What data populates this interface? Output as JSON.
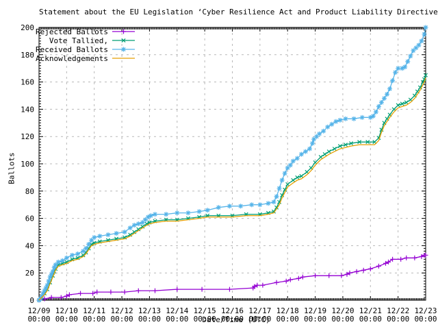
{
  "title": "Statement about the EU Legislation ‘Cyber Resilience Act and Product Liability Directive’",
  "colors": {
    "rejected": "#9400d3",
    "tallied": "#009e73",
    "received": "#56b4e9",
    "acknowledgements": "#e69f00",
    "grid": "#b8b8b8",
    "border": "#000000",
    "background": "#ffffff"
  },
  "chart_data": {
    "type": "line",
    "title": "Statement about the EU Legislation ‘Cyber Resilience Act and Product Liability Directive’",
    "xlabel": "Date/Time (UTC)",
    "ylabel": "Ballots",
    "ylim": [
      0,
      200
    ],
    "xlim_days": [
      0,
      14
    ],
    "grid": true,
    "legend_position": "top-left",
    "y_ticks": [
      0,
      20,
      40,
      60,
      80,
      100,
      120,
      140,
      160,
      180,
      200
    ],
    "x_ticks": [
      {
        "label": "12/09",
        "sub": "00:00"
      },
      {
        "label": "12/10",
        "sub": "00:00"
      },
      {
        "label": "12/11",
        "sub": "00:00"
      },
      {
        "label": "12/12",
        "sub": "00:00"
      },
      {
        "label": "12/13",
        "sub": "00:00"
      },
      {
        "label": "12/14",
        "sub": "00:00"
      },
      {
        "label": "12/15",
        "sub": "00:00"
      },
      {
        "label": "12/16",
        "sub": "00:00"
      },
      {
        "label": "12/17",
        "sub": "00:00"
      },
      {
        "label": "12/18",
        "sub": "00:00"
      },
      {
        "label": "12/19",
        "sub": "00:00"
      },
      {
        "label": "12/20",
        "sub": "00:00"
      },
      {
        "label": "12/21",
        "sub": "00:00"
      },
      {
        "label": "12/22",
        "sub": "00:00"
      },
      {
        "label": "12/23",
        "sub": "00:00"
      }
    ],
    "series": [
      {
        "name": "Rejected Ballots",
        "color": "#9400d3",
        "marker": "plus",
        "points": [
          [
            0,
            0
          ],
          [
            0.2,
            1
          ],
          [
            0.45,
            2
          ],
          [
            0.8,
            2
          ],
          [
            1.0,
            3
          ],
          [
            1.1,
            4
          ],
          [
            1.5,
            5
          ],
          [
            1.95,
            5
          ],
          [
            2.1,
            6
          ],
          [
            2.6,
            6
          ],
          [
            3.1,
            6
          ],
          [
            3.6,
            7
          ],
          [
            4.2,
            7
          ],
          [
            5.0,
            8
          ],
          [
            5.9,
            8
          ],
          [
            6.9,
            8
          ],
          [
            7.75,
            9
          ],
          [
            7.8,
            10
          ],
          [
            7.9,
            11
          ],
          [
            8.1,
            11
          ],
          [
            8.6,
            13
          ],
          [
            8.95,
            14
          ],
          [
            9.1,
            15
          ],
          [
            9.4,
            16
          ],
          [
            9.55,
            17
          ],
          [
            10.0,
            18
          ],
          [
            10.5,
            18
          ],
          [
            10.95,
            18
          ],
          [
            11.15,
            19
          ],
          [
            11.25,
            20
          ],
          [
            11.5,
            21
          ],
          [
            11.75,
            22
          ],
          [
            12.0,
            23
          ],
          [
            12.3,
            25
          ],
          [
            12.55,
            27
          ],
          [
            12.65,
            28
          ],
          [
            12.8,
            30
          ],
          [
            13.1,
            30
          ],
          [
            13.3,
            31
          ],
          [
            13.6,
            31
          ],
          [
            13.85,
            32
          ],
          [
            13.95,
            33
          ],
          [
            14.0,
            33
          ]
        ]
      },
      {
        "name": "Vote Tallied,",
        "color": "#009e73",
        "marker": "cross",
        "points": [
          [
            0,
            0
          ],
          [
            0.1,
            2
          ],
          [
            0.2,
            5
          ],
          [
            0.3,
            8
          ],
          [
            0.4,
            13
          ],
          [
            0.5,
            18
          ],
          [
            0.55,
            21
          ],
          [
            0.6,
            23
          ],
          [
            0.7,
            26
          ],
          [
            0.85,
            27
          ],
          [
            1.0,
            28
          ],
          [
            1.2,
            30
          ],
          [
            1.4,
            31
          ],
          [
            1.6,
            33
          ],
          [
            1.7,
            35
          ],
          [
            1.8,
            38
          ],
          [
            1.9,
            41
          ],
          [
            2.0,
            42
          ],
          [
            2.2,
            43
          ],
          [
            2.5,
            44
          ],
          [
            2.8,
            45
          ],
          [
            3.1,
            46
          ],
          [
            3.3,
            48
          ],
          [
            3.45,
            50
          ],
          [
            3.6,
            52
          ],
          [
            3.75,
            54
          ],
          [
            3.9,
            56
          ],
          [
            4.0,
            57
          ],
          [
            4.2,
            58
          ],
          [
            4.6,
            59
          ],
          [
            5.0,
            59
          ],
          [
            5.4,
            60
          ],
          [
            5.8,
            61
          ],
          [
            6.1,
            62
          ],
          [
            6.5,
            62
          ],
          [
            7.0,
            62
          ],
          [
            7.5,
            63
          ],
          [
            8.0,
            63
          ],
          [
            8.3,
            64
          ],
          [
            8.5,
            65
          ],
          [
            8.6,
            68
          ],
          [
            8.7,
            72
          ],
          [
            8.8,
            77
          ],
          [
            8.9,
            81
          ],
          [
            9.0,
            85
          ],
          [
            9.2,
            88
          ],
          [
            9.35,
            90
          ],
          [
            9.5,
            91
          ],
          [
            9.7,
            94
          ],
          [
            9.85,
            97
          ],
          [
            10.0,
            101
          ],
          [
            10.2,
            105
          ],
          [
            10.35,
            107
          ],
          [
            10.5,
            109
          ],
          [
            10.7,
            111
          ],
          [
            10.9,
            113
          ],
          [
            11.1,
            114
          ],
          [
            11.3,
            115
          ],
          [
            11.6,
            116
          ],
          [
            11.9,
            116
          ],
          [
            12.15,
            116
          ],
          [
            12.3,
            119
          ],
          [
            12.4,
            125
          ],
          [
            12.5,
            130
          ],
          [
            12.6,
            133
          ],
          [
            12.7,
            136
          ],
          [
            12.85,
            140
          ],
          [
            13.0,
            143
          ],
          [
            13.15,
            144
          ],
          [
            13.3,
            145
          ],
          [
            13.45,
            147
          ],
          [
            13.6,
            150
          ],
          [
            13.7,
            153
          ],
          [
            13.8,
            156
          ],
          [
            13.9,
            160
          ],
          [
            13.95,
            162
          ],
          [
            14.0,
            165
          ]
        ]
      },
      {
        "name": "Received Ballots",
        "color": "#56b4e9",
        "marker": "star",
        "points": [
          [
            0,
            0
          ],
          [
            0.05,
            1
          ],
          [
            0.1,
            3
          ],
          [
            0.15,
            5
          ],
          [
            0.2,
            7
          ],
          [
            0.25,
            9
          ],
          [
            0.3,
            11
          ],
          [
            0.35,
            14
          ],
          [
            0.4,
            17
          ],
          [
            0.45,
            19
          ],
          [
            0.5,
            21
          ],
          [
            0.55,
            24
          ],
          [
            0.6,
            26
          ],
          [
            0.7,
            28
          ],
          [
            0.85,
            29
          ],
          [
            1.0,
            31
          ],
          [
            1.2,
            33
          ],
          [
            1.4,
            34
          ],
          [
            1.6,
            36
          ],
          [
            1.7,
            38
          ],
          [
            1.8,
            41
          ],
          [
            1.9,
            44
          ],
          [
            2.0,
            46
          ],
          [
            2.2,
            47
          ],
          [
            2.5,
            48
          ],
          [
            2.8,
            49
          ],
          [
            3.1,
            50
          ],
          [
            3.3,
            53
          ],
          [
            3.45,
            55
          ],
          [
            3.6,
            56
          ],
          [
            3.75,
            57
          ],
          [
            3.85,
            59
          ],
          [
            3.95,
            61
          ],
          [
            4.05,
            62
          ],
          [
            4.2,
            63
          ],
          [
            4.6,
            63
          ],
          [
            5.0,
            64
          ],
          [
            5.4,
            64
          ],
          [
            5.8,
            65
          ],
          [
            6.1,
            66
          ],
          [
            6.5,
            68
          ],
          [
            6.9,
            69
          ],
          [
            7.3,
            69
          ],
          [
            7.7,
            70
          ],
          [
            8.0,
            70
          ],
          [
            8.3,
            71
          ],
          [
            8.5,
            72
          ],
          [
            8.6,
            76
          ],
          [
            8.7,
            82
          ],
          [
            8.8,
            88
          ],
          [
            8.9,
            93
          ],
          [
            9.0,
            97
          ],
          [
            9.1,
            99
          ],
          [
            9.2,
            102
          ],
          [
            9.35,
            104
          ],
          [
            9.5,
            107
          ],
          [
            9.65,
            109
          ],
          [
            9.8,
            111
          ],
          [
            9.9,
            115
          ],
          [
            9.95,
            118
          ],
          [
            10.05,
            120
          ],
          [
            10.15,
            122
          ],
          [
            10.3,
            124
          ],
          [
            10.45,
            127
          ],
          [
            10.6,
            129
          ],
          [
            10.75,
            131
          ],
          [
            10.9,
            132
          ],
          [
            11.1,
            133
          ],
          [
            11.4,
            133
          ],
          [
            11.7,
            134
          ],
          [
            12.0,
            134
          ],
          [
            12.1,
            135
          ],
          [
            12.2,
            138
          ],
          [
            12.3,
            142
          ],
          [
            12.4,
            145
          ],
          [
            12.5,
            148
          ],
          [
            12.6,
            151
          ],
          [
            12.7,
            155
          ],
          [
            12.8,
            161
          ],
          [
            12.9,
            167
          ],
          [
            13.0,
            170
          ],
          [
            13.15,
            170
          ],
          [
            13.25,
            171
          ],
          [
            13.35,
            175
          ],
          [
            13.45,
            179
          ],
          [
            13.55,
            183
          ],
          [
            13.65,
            185
          ],
          [
            13.75,
            187
          ],
          [
            13.85,
            190
          ],
          [
            13.95,
            195
          ],
          [
            14.0,
            200
          ]
        ]
      },
      {
        "name": "Acknowledgements",
        "color": "#e69f00",
        "marker": "none",
        "points": [
          [
            0,
            0
          ],
          [
            0.1,
            2
          ],
          [
            0.2,
            4
          ],
          [
            0.3,
            7
          ],
          [
            0.4,
            12
          ],
          [
            0.5,
            17
          ],
          [
            0.6,
            22
          ],
          [
            0.7,
            25
          ],
          [
            0.85,
            26
          ],
          [
            1.0,
            27
          ],
          [
            1.2,
            29
          ],
          [
            1.4,
            30
          ],
          [
            1.6,
            32
          ],
          [
            1.7,
            34
          ],
          [
            1.8,
            37
          ],
          [
            1.9,
            40
          ],
          [
            2.0,
            41
          ],
          [
            2.2,
            42
          ],
          [
            2.5,
            43
          ],
          [
            2.8,
            44
          ],
          [
            3.1,
            45
          ],
          [
            3.3,
            47
          ],
          [
            3.45,
            49
          ],
          [
            3.6,
            51
          ],
          [
            3.75,
            53
          ],
          [
            3.9,
            55
          ],
          [
            4.0,
            56
          ],
          [
            4.2,
            57
          ],
          [
            4.6,
            58
          ],
          [
            5.0,
            58
          ],
          [
            5.4,
            59
          ],
          [
            5.8,
            60
          ],
          [
            6.1,
            61
          ],
          [
            6.5,
            61
          ],
          [
            7.0,
            61
          ],
          [
            7.5,
            62
          ],
          [
            8.0,
            62
          ],
          [
            8.3,
            63
          ],
          [
            8.5,
            64
          ],
          [
            8.6,
            67
          ],
          [
            8.7,
            70
          ],
          [
            8.8,
            75
          ],
          [
            8.9,
            79
          ],
          [
            9.0,
            83
          ],
          [
            9.2,
            86
          ],
          [
            9.35,
            88
          ],
          [
            9.5,
            89
          ],
          [
            9.7,
            92
          ],
          [
            9.85,
            95
          ],
          [
            10.0,
            99
          ],
          [
            10.2,
            103
          ],
          [
            10.35,
            105
          ],
          [
            10.5,
            107
          ],
          [
            10.7,
            109
          ],
          [
            10.9,
            111
          ],
          [
            11.1,
            112
          ],
          [
            11.3,
            113
          ],
          [
            11.6,
            114
          ],
          [
            11.9,
            114
          ],
          [
            12.15,
            114
          ],
          [
            12.3,
            117
          ],
          [
            12.4,
            123
          ],
          [
            12.5,
            128
          ],
          [
            12.6,
            131
          ],
          [
            12.7,
            134
          ],
          [
            12.85,
            138
          ],
          [
            13.0,
            141
          ],
          [
            13.15,
            142
          ],
          [
            13.3,
            143
          ],
          [
            13.45,
            145
          ],
          [
            13.6,
            148
          ],
          [
            13.7,
            151
          ],
          [
            13.8,
            154
          ],
          [
            13.9,
            158
          ],
          [
            13.95,
            160
          ],
          [
            14.0,
            163
          ]
        ]
      }
    ]
  }
}
